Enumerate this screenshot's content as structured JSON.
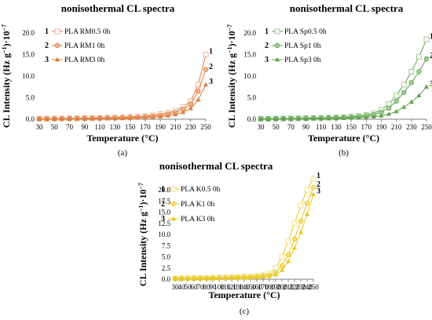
{
  "colors": {
    "RM": "#E07A3A",
    "Sp": "#5DA14A",
    "K": "#E7C71A"
  },
  "chart_data": [
    {
      "id": "a",
      "type": "line",
      "title": "nonisothermal CL spectra",
      "xlabel": "Temperature (°C)",
      "ylabel_prefix": "CL Intensity (Hz g",
      "ylabel_sup1": "−1",
      "ylabel_mid": ")·10",
      "ylabel_sup2": "−7",
      "caption": "(a)",
      "xlim": [
        30,
        250
      ],
      "ylim": [
        0,
        20
      ],
      "x_ticks": [
        30,
        50,
        70,
        90,
        110,
        130,
        150,
        170,
        190,
        210,
        230,
        250
      ],
      "y_ticks": [
        "0.0",
        "5.0",
        "10.0",
        "15.0",
        "20.0"
      ],
      "grid": false,
      "legend_position": "top-left",
      "color": "RM",
      "series": [
        {
          "num": "1",
          "name": "PLA RM0.5 0h",
          "marker": "square",
          "x": [
            30,
            40,
            50,
            60,
            70,
            80,
            90,
            100,
            110,
            120,
            130,
            140,
            150,
            160,
            170,
            180,
            190,
            200,
            210,
            220,
            230,
            240,
            250
          ],
          "y": [
            0.1,
            0.1,
            0.15,
            0.15,
            0.2,
            0.2,
            0.25,
            0.25,
            0.3,
            0.35,
            0.4,
            0.45,
            0.55,
            0.6,
            0.75,
            0.9,
            1.2,
            1.5,
            2.0,
            2.8,
            4.2,
            8.0,
            15.0
          ]
        },
        {
          "num": "2",
          "name": "PLA RM1 0h",
          "marker": "circle",
          "x": [
            30,
            40,
            50,
            60,
            70,
            80,
            90,
            100,
            110,
            120,
            130,
            140,
            150,
            160,
            170,
            180,
            190,
            200,
            210,
            220,
            230,
            240,
            250
          ],
          "y": [
            0.1,
            0.1,
            0.1,
            0.15,
            0.15,
            0.2,
            0.2,
            0.2,
            0.25,
            0.3,
            0.3,
            0.35,
            0.4,
            0.45,
            0.55,
            0.7,
            0.9,
            1.2,
            1.6,
            2.3,
            3.5,
            6.5,
            11.5
          ]
        },
        {
          "num": "3",
          "name": "PLA RM3 0h",
          "marker": "triangle",
          "x": [
            30,
            40,
            50,
            60,
            70,
            80,
            90,
            100,
            110,
            120,
            130,
            140,
            150,
            160,
            170,
            180,
            190,
            200,
            210,
            220,
            230,
            240,
            250
          ],
          "y": [
            0.05,
            0.05,
            0.05,
            0.1,
            0.1,
            0.1,
            0.1,
            0.1,
            0.15,
            0.15,
            0.2,
            0.2,
            0.25,
            0.3,
            0.35,
            0.45,
            0.6,
            0.8,
            1.1,
            1.6,
            2.5,
            4.5,
            8.0
          ]
        }
      ]
    },
    {
      "id": "b",
      "type": "line",
      "title": "nonisothermal CL spectra",
      "xlabel": "Temperature (°C)",
      "ylabel_prefix": "CL Intensity (Hz g",
      "ylabel_sup1": "−1",
      "ylabel_mid": ")·10",
      "ylabel_sup2": "−7",
      "caption": "(b)",
      "xlim": [
        30,
        250
      ],
      "ylim": [
        0,
        20
      ],
      "x_ticks": [
        30,
        50,
        70,
        90,
        110,
        130,
        150,
        170,
        190,
        210,
        230,
        250
      ],
      "y_ticks": [
        "0.0",
        "5.0",
        "10.0",
        "15.0",
        "20.0"
      ],
      "grid": false,
      "legend_position": "top-left",
      "color": "Sp",
      "series": [
        {
          "num": "1",
          "name": "PLA Sp0.5 0h",
          "marker": "square",
          "x": [
            30,
            40,
            50,
            60,
            70,
            80,
            90,
            100,
            110,
            120,
            130,
            140,
            150,
            160,
            170,
            180,
            190,
            200,
            210,
            220,
            230,
            240,
            250
          ],
          "y": [
            0.1,
            0.1,
            0.15,
            0.15,
            0.2,
            0.2,
            0.25,
            0.3,
            0.3,
            0.35,
            0.4,
            0.5,
            0.6,
            0.8,
            1.0,
            1.4,
            2.2,
            3.5,
            5.5,
            8.0,
            11.0,
            14.5,
            18.5
          ]
        },
        {
          "num": "2",
          "name": "PLA Sp1 0h",
          "marker": "circle",
          "x": [
            30,
            40,
            50,
            60,
            70,
            80,
            90,
            100,
            110,
            120,
            130,
            140,
            150,
            160,
            170,
            180,
            190,
            200,
            210,
            220,
            230,
            240,
            250
          ],
          "y": [
            0.1,
            0.1,
            0.1,
            0.15,
            0.15,
            0.2,
            0.2,
            0.25,
            0.25,
            0.3,
            0.35,
            0.4,
            0.5,
            0.6,
            0.8,
            1.1,
            1.6,
            2.6,
            4.2,
            6.2,
            8.5,
            11.0,
            14.0
          ]
        },
        {
          "num": "3",
          "name": "PLA Sp3 0h",
          "marker": "triangle",
          "x": [
            30,
            40,
            50,
            60,
            70,
            80,
            90,
            100,
            110,
            120,
            130,
            140,
            150,
            160,
            170,
            180,
            190,
            200,
            210,
            220,
            230,
            240,
            250
          ],
          "y": [
            0.05,
            0.05,
            0.05,
            0.1,
            0.1,
            0.1,
            0.1,
            0.15,
            0.15,
            0.2,
            0.2,
            0.25,
            0.3,
            0.35,
            0.45,
            0.6,
            0.8,
            1.2,
            1.8,
            2.8,
            4.0,
            5.5,
            7.5
          ]
        }
      ]
    },
    {
      "id": "c",
      "type": "line",
      "title": "nonisothermal CL spectra",
      "xlabel": "Temperature (°C)",
      "ylabel_prefix": "CL Intensity (Hz g",
      "ylabel_sup1": "−1",
      "ylabel_mid": ")·10",
      "ylabel_sup2": "−7",
      "caption": "(c)",
      "xlim": [
        30,
        250
      ],
      "ylim": [
        0,
        20
      ],
      "x_ticks": [
        30,
        40,
        50,
        60,
        70,
        80,
        90,
        100,
        110,
        120,
        130,
        140,
        150,
        160,
        170,
        180,
        190,
        200,
        210,
        220,
        230,
        240,
        250
      ],
      "y_ticks": [
        "0.0",
        "2.5",
        "5.0",
        "7.5",
        "10.0",
        "12.5",
        "15.0",
        "17.5",
        "20.0"
      ],
      "grid": false,
      "legend_position": "top-left",
      "color": "K",
      "series": [
        {
          "num": "1",
          "name": "PLA K0.5 0h",
          "marker": "square",
          "x": [
            30,
            40,
            50,
            60,
            70,
            80,
            90,
            100,
            110,
            120,
            130,
            140,
            150,
            160,
            170,
            180,
            190,
            200,
            210,
            220,
            230,
            240,
            250
          ],
          "y": [
            0.2,
            0.2,
            0.25,
            0.25,
            0.3,
            0.3,
            0.35,
            0.4,
            0.4,
            0.45,
            0.5,
            0.55,
            0.65,
            0.75,
            0.9,
            1.3,
            2.5,
            5.0,
            8.5,
            12.5,
            16.5,
            20.0,
            22.5
          ]
        },
        {
          "num": "2",
          "name": "PLA K1 0h",
          "marker": "circle",
          "x": [
            30,
            40,
            50,
            60,
            70,
            80,
            90,
            100,
            110,
            120,
            130,
            140,
            150,
            160,
            170,
            180,
            190,
            200,
            210,
            220,
            230,
            240,
            250
          ],
          "y": [
            0.15,
            0.15,
            0.2,
            0.2,
            0.2,
            0.25,
            0.25,
            0.3,
            0.3,
            0.35,
            0.4,
            0.45,
            0.5,
            0.55,
            0.7,
            0.9,
            1.5,
            3.0,
            5.5,
            9.0,
            13.0,
            17.0,
            20.5
          ]
        },
        {
          "num": "3",
          "name": "PLA K3 0h",
          "marker": "triangle",
          "x": [
            30,
            40,
            50,
            60,
            70,
            80,
            90,
            100,
            110,
            120,
            130,
            140,
            150,
            160,
            170,
            180,
            190,
            200,
            210,
            220,
            230,
            240,
            250
          ],
          "y": [
            0.1,
            0.1,
            0.1,
            0.15,
            0.15,
            0.15,
            0.2,
            0.2,
            0.25,
            0.25,
            0.3,
            0.3,
            0.35,
            0.4,
            0.5,
            0.65,
            1.0,
            2.0,
            4.0,
            7.0,
            10.5,
            14.5,
            19.0
          ]
        }
      ]
    }
  ]
}
